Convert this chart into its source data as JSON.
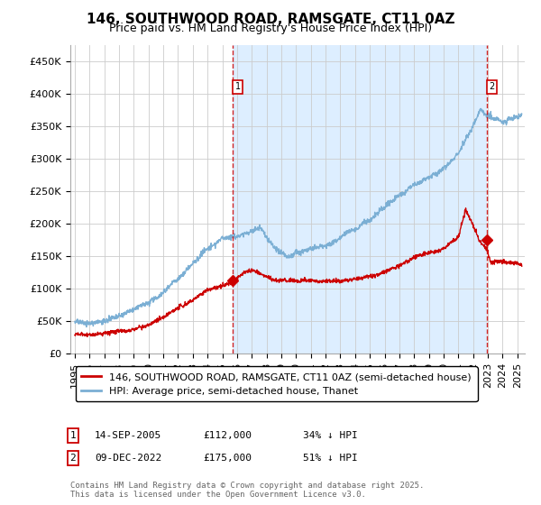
{
  "title": "146, SOUTHWOOD ROAD, RAMSGATE, CT11 0AZ",
  "subtitle": "Price paid vs. HM Land Registry's House Price Index (HPI)",
  "ylabel_ticks": [
    "£0",
    "£50K",
    "£100K",
    "£150K",
    "£200K",
    "£250K",
    "£300K",
    "£350K",
    "£400K",
    "£450K"
  ],
  "ytick_values": [
    0,
    50000,
    100000,
    150000,
    200000,
    250000,
    300000,
    350000,
    400000,
    450000
  ],
  "ylim": [
    0,
    475000
  ],
  "xlim_start": 1994.7,
  "xlim_end": 2025.5,
  "line1_label": "146, SOUTHWOOD ROAD, RAMSGATE, CT11 0AZ (semi-detached house)",
  "line2_label": "HPI: Average price, semi-detached house, Thanet",
  "line1_color": "#cc0000",
  "line2_color": "#7bafd4",
  "fill_color": "#ddeeff",
  "vline_color": "#cc0000",
  "marker1_date": 2005.71,
  "marker1_price": 112000,
  "marker2_date": 2022.94,
  "marker2_price": 175000,
  "annotation1_label": "1",
  "annotation1_date": "14-SEP-2005",
  "annotation1_price": "£112,000",
  "annotation1_hpi": "34% ↓ HPI",
  "annotation2_label": "2",
  "annotation2_date": "09-DEC-2022",
  "annotation2_price": "£175,000",
  "annotation2_hpi": "51% ↓ HPI",
  "footer": "Contains HM Land Registry data © Crown copyright and database right 2025.\nThis data is licensed under the Open Government Licence v3.0.",
  "background_color": "#ffffff",
  "grid_color": "#cccccc",
  "title_fontsize": 11,
  "subtitle_fontsize": 9,
  "tick_fontsize": 8,
  "legend_fontsize": 8
}
